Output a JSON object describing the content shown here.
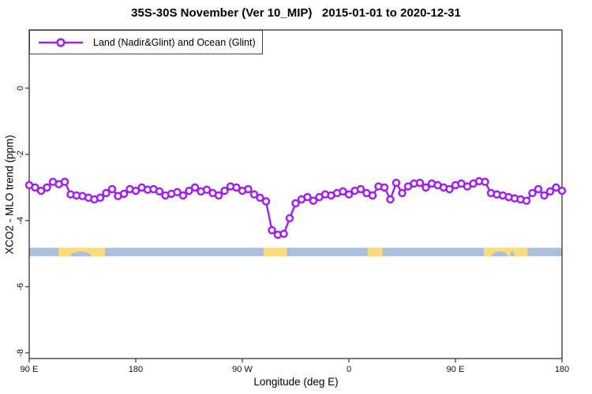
{
  "chart_data": {
    "type": "line",
    "title": "35S-30S November (Ver 10_MIP)   2015-01-01 to 2020-12-31",
    "xlabel": "Longitude (deg E)",
    "ylabel": "XCO2 - MLO trend (ppm)",
    "xlim": [
      90,
      540
    ],
    "ylim": [
      -8.17,
      1.76
    ],
    "grid": false,
    "x_ticks": [
      {
        "x": 90,
        "label": "90 E"
      },
      {
        "x": 180,
        "label": "180"
      },
      {
        "x": 270,
        "label": "90 W"
      },
      {
        "x": 360,
        "label": "0"
      },
      {
        "x": 450,
        "label": "90 E"
      },
      {
        "x": 540,
        "label": "180"
      }
    ],
    "y_ticks": [
      {
        "y": 0,
        "label": "0"
      },
      {
        "y": -2,
        "label": "-2"
      },
      {
        "y": -4,
        "label": "-4"
      },
      {
        "y": -6,
        "label": "-6"
      },
      {
        "y": -8,
        "label": "-8"
      }
    ],
    "legend": {
      "position": "top-left",
      "label": "Land (Nadir&Glint) and Ocean (Glint)",
      "marker": "open-circle-on-line"
    },
    "series": [
      {
        "name": "Land (Nadir&Glint) and Ocean (Glint)",
        "color": "#A020F0",
        "marker": "open-circle",
        "line_width": 2.4,
        "x": [
          90,
          95,
          100,
          105,
          110,
          115,
          120,
          125,
          130,
          135,
          140,
          145,
          150,
          155,
          160,
          165,
          170,
          175,
          180,
          185,
          190,
          195,
          200,
          205,
          210,
          215,
          220,
          225,
          230,
          235,
          240,
          245,
          250,
          255,
          260,
          265,
          270,
          275,
          280,
          285,
          290,
          295,
          300,
          305,
          310,
          315,
          320,
          325,
          330,
          335,
          340,
          345,
          350,
          355,
          360,
          365,
          370,
          375,
          380,
          385,
          390,
          395,
          400,
          405,
          410,
          415,
          420,
          425,
          430,
          435,
          440,
          445,
          450,
          455,
          460,
          465,
          470,
          475,
          480,
          485,
          490,
          495,
          500,
          505,
          510,
          515,
          520,
          525,
          530,
          535,
          540
        ],
        "y": [
          -2.93,
          -3.0,
          -3.1,
          -3.0,
          -2.83,
          -2.9,
          -2.83,
          -3.21,
          -3.24,
          -3.26,
          -3.31,
          -3.36,
          -3.31,
          -3.17,
          -3.05,
          -3.26,
          -3.19,
          -3.05,
          -3.1,
          -3.0,
          -3.07,
          -3.05,
          -3.12,
          -3.24,
          -3.19,
          -3.14,
          -3.24,
          -3.1,
          -3.0,
          -3.12,
          -3.07,
          -3.17,
          -3.24,
          -3.1,
          -2.97,
          -3.0,
          -3.1,
          -3.05,
          -3.21,
          -3.31,
          -3.42,
          -4.29,
          -4.43,
          -4.4,
          -3.93,
          -3.48,
          -3.36,
          -3.29,
          -3.4,
          -3.29,
          -3.21,
          -3.24,
          -3.17,
          -3.12,
          -3.21,
          -3.1,
          -3.05,
          -3.17,
          -3.24,
          -2.97,
          -3.0,
          -3.36,
          -2.86,
          -3.17,
          -2.97,
          -2.88,
          -2.86,
          -3.0,
          -2.88,
          -2.93,
          -3.0,
          -3.05,
          -2.93,
          -2.88,
          -2.97,
          -2.88,
          -2.81,
          -2.83,
          -3.17,
          -3.21,
          -3.24,
          -3.29,
          -3.33,
          -3.36,
          -3.4,
          -3.17,
          -3.05,
          -3.24,
          -3.12,
          -3.0,
          -3.1
        ]
      }
    ],
    "surface_band": {
      "description": "land-ocean strip along longitude",
      "y_range": [
        -4.82,
        -5.08
      ],
      "ocean_color": "#A9BFDC",
      "land_color": "#FBDB7C",
      "land_segments_deg": [
        [
          114.7,
          154
        ],
        [
          288,
          307.5
        ],
        [
          376,
          388.5
        ],
        [
          474,
          511
        ]
      ],
      "ocean_inlet_deg": [
        [
          124,
          143
        ],
        [
          480,
          495
        ],
        [
          496,
          500
        ]
      ]
    },
    "frame_color": "#333333"
  }
}
